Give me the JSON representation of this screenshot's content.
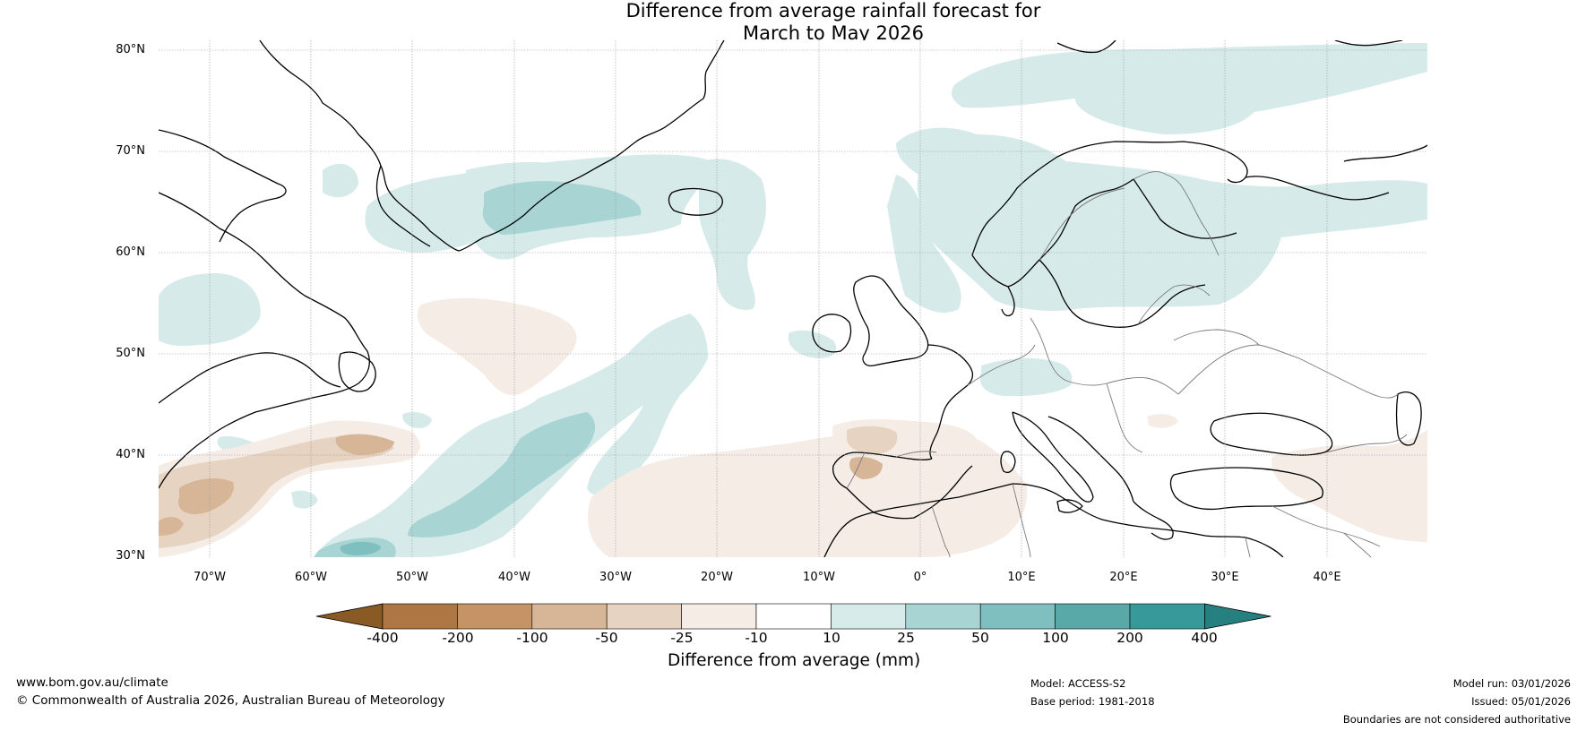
{
  "title": {
    "line1": "Difference from average rainfall forecast for",
    "line2": "March to May 2026"
  },
  "map": {
    "lat_labels": [
      "80°N",
      "70°N",
      "60°N",
      "50°N",
      "40°N",
      "30°N"
    ],
    "lon_labels": [
      "70°W",
      "60°W",
      "50°W",
      "40°W",
      "30°W",
      "20°W",
      "10°W",
      "0°",
      "10°E",
      "20°E",
      "30°E",
      "40°E"
    ],
    "extent": {
      "lon_min": -75,
      "lon_max": 50,
      "lat_min": 30,
      "lat_max": 81
    }
  },
  "legend": {
    "title": "Difference from average (mm)",
    "ticks": [
      "-400",
      "-200",
      "-100",
      "-50",
      "-25",
      "-10",
      "10",
      "25",
      "50",
      "100",
      "200",
      "400"
    ],
    "colors": [
      "#8a5a24",
      "#ad7642",
      "#c49466",
      "#d6b696",
      "#e7d3c1",
      "#f4ece5",
      "#ffffff",
      "#d6eaea",
      "#a8d4d4",
      "#7fbfbf",
      "#5aa9a9",
      "#36999a",
      "#25807f"
    ]
  },
  "footer": {
    "website": "www.bom.gov.au/climate",
    "copyright": "© Commonwealth of Australia 2026, Australian Bureau of Meteorology",
    "model": "Model: ACCESS-S2",
    "base_period": "Base period: 1981-2018",
    "model_run": "Model run: 03/01/2026",
    "issued": "Issued: 05/01/2026",
    "disclaimer": "Boundaries are not considered authoritative"
  }
}
